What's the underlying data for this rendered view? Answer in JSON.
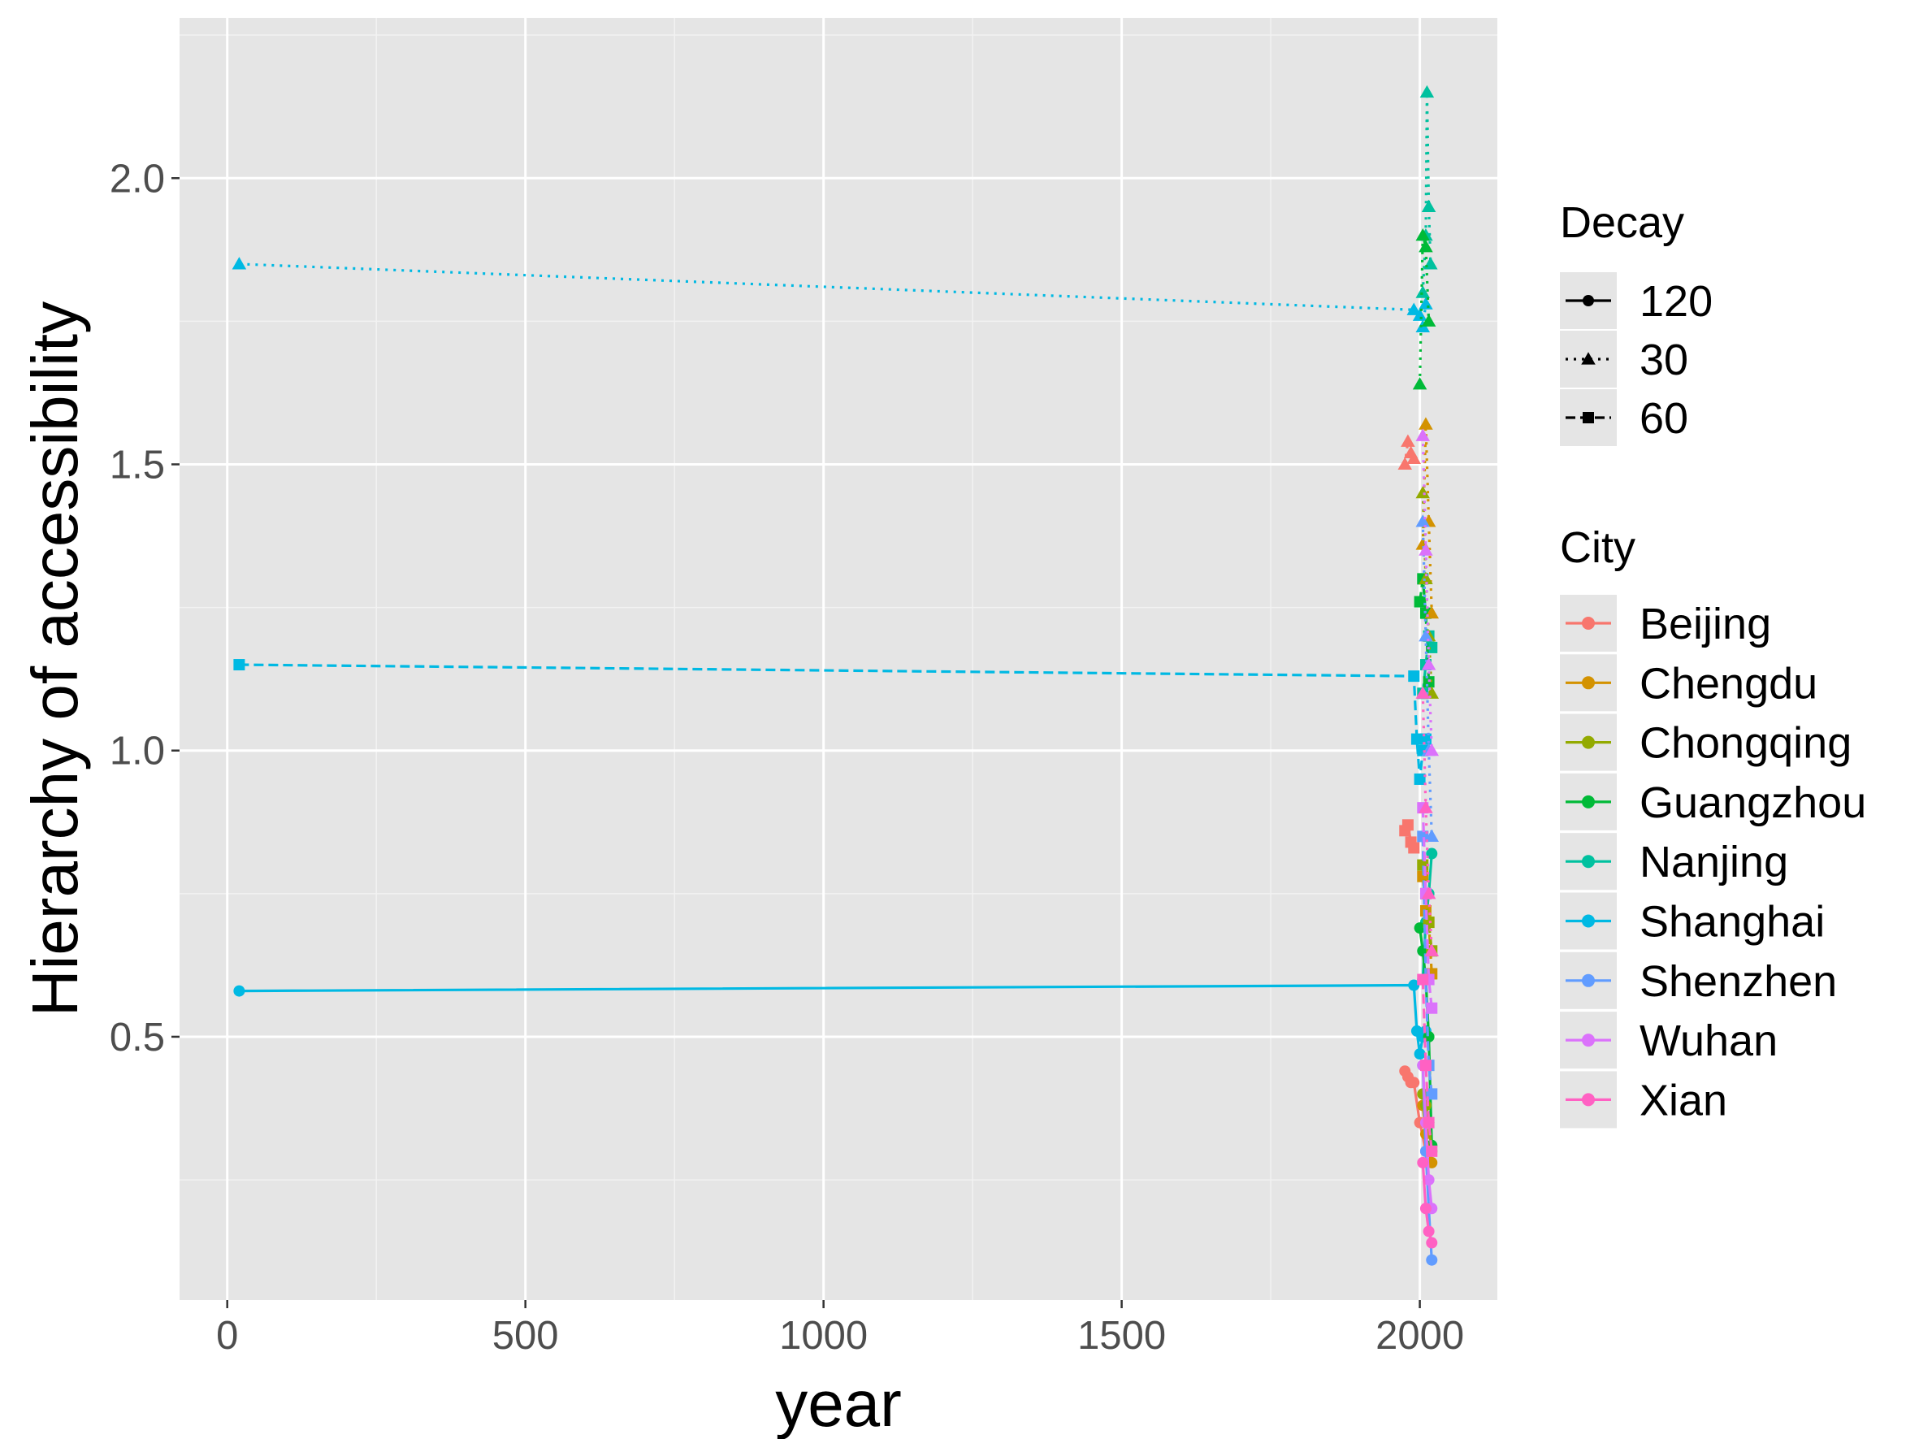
{
  "chart_data": {
    "type": "line",
    "title": "",
    "xlabel": "year",
    "ylabel": "Hierarchy of accessibility",
    "xlim": [
      -80,
      2130
    ],
    "ylim": [
      0.04,
      2.28
    ],
    "x_ticks": [
      0,
      500,
      1000,
      1500,
      2000
    ],
    "x_tick_labels": [
      "0",
      "500",
      "1000",
      "1500",
      "2000"
    ],
    "y_ticks": [
      0.5,
      1.0,
      1.5,
      2.0
    ],
    "y_tick_labels": [
      "0.5",
      "1.0",
      "1.5",
      "2.0"
    ],
    "grid": true,
    "background": "#e5e5e5",
    "legend_position": "right",
    "legend_decay": {
      "title": "Decay",
      "entries": [
        {
          "label": "120",
          "linetype": "solid",
          "shape": "circle"
        },
        {
          "label": "30",
          "linetype": "dotted",
          "shape": "triangle"
        },
        {
          "label": "60",
          "linetype": "dashed",
          "shape": "square"
        }
      ]
    },
    "legend_city": {
      "title": "City",
      "entries": [
        {
          "label": "Beijing",
          "color": "#F8766D"
        },
        {
          "label": "Chengdu",
          "color": "#D39200"
        },
        {
          "label": "Chongqing",
          "color": "#93AA00"
        },
        {
          "label": "Guangzhou",
          "color": "#00BA38"
        },
        {
          "label": "Nanjing",
          "color": "#00C19F"
        },
        {
          "label": "Shanghai",
          "color": "#00B9E3"
        },
        {
          "label": "Shenzhen",
          "color": "#619CFF"
        },
        {
          "label": "Wuhan",
          "color": "#DB72FB"
        },
        {
          "label": "Xian",
          "color": "#FF61C3"
        }
      ]
    },
    "series": [
      {
        "city": "Shanghai",
        "decay": "30",
        "x": [
          20,
          1990,
          2000,
          2005,
          2010
        ],
        "y": [
          1.85,
          1.77,
          1.76,
          1.74,
          1.78
        ]
      },
      {
        "city": "Shanghai",
        "decay": "60",
        "x": [
          20,
          1990,
          1995,
          2000,
          2005,
          2010
        ],
        "y": [
          1.15,
          1.13,
          1.02,
          0.95,
          1.0,
          1.02
        ]
      },
      {
        "city": "Shanghai",
        "decay": "120",
        "x": [
          20,
          1990,
          1995,
          2000,
          2005,
          2010
        ],
        "y": [
          0.58,
          0.59,
          0.51,
          0.47,
          0.5,
          0.51
        ]
      },
      {
        "city": "Beijing",
        "decay": "30",
        "x": [
          1975,
          1980,
          1985,
          1990
        ],
        "y": [
          1.5,
          1.54,
          1.52,
          1.51
        ]
      },
      {
        "city": "Beijing",
        "decay": "60",
        "x": [
          1975,
          1980,
          1985,
          1990
        ],
        "y": [
          0.86,
          0.87,
          0.84,
          0.83
        ]
      },
      {
        "city": "Beijing",
        "decay": "120",
        "x": [
          1975,
          1980,
          1985,
          1990,
          2000,
          2010
        ],
        "y": [
          0.44,
          0.43,
          0.42,
          0.42,
          0.35,
          0.3
        ]
      },
      {
        "city": "Nanjing",
        "decay": "30",
        "x": [
          2005,
          2010,
          2012,
          2015,
          2018
        ],
        "y": [
          1.8,
          1.9,
          2.15,
          1.95,
          1.85
        ]
      },
      {
        "city": "Nanjing",
        "decay": "60",
        "x": [
          2005,
          2010,
          2015,
          2020
        ],
        "y": [
          1.1,
          1.15,
          1.2,
          1.18
        ]
      },
      {
        "city": "Nanjing",
        "decay": "120",
        "x": [
          2005,
          2010,
          2015,
          2020
        ],
        "y": [
          0.6,
          0.7,
          0.75,
          0.82
        ]
      },
      {
        "city": "Guangzhou",
        "decay": "30",
        "x": [
          2000,
          2005,
          2010,
          2015
        ],
        "y": [
          1.64,
          1.9,
          1.88,
          1.75
        ]
      },
      {
        "city": "Guangzhou",
        "decay": "60",
        "x": [
          2000,
          2005,
          2010,
          2015
        ],
        "y": [
          1.26,
          1.3,
          1.24,
          1.12
        ]
      },
      {
        "city": "Guangzhou",
        "decay": "120",
        "x": [
          2000,
          2005,
          2010,
          2015,
          2020
        ],
        "y": [
          0.69,
          0.65,
          0.6,
          0.5,
          0.31
        ]
      },
      {
        "city": "Chengdu",
        "decay": "30",
        "x": [
          2005,
          2010,
          2015,
          2020
        ],
        "y": [
          1.36,
          1.57,
          1.4,
          1.24
        ]
      },
      {
        "city": "Chengdu",
        "decay": "60",
        "x": [
          2005,
          2010,
          2015,
          2020
        ],
        "y": [
          0.78,
          0.72,
          0.7,
          0.61
        ]
      },
      {
        "city": "Chengdu",
        "decay": "120",
        "x": [
          2005,
          2010,
          2015,
          2020
        ],
        "y": [
          0.38,
          0.33,
          0.3,
          0.28
        ]
      },
      {
        "city": "Chongqing",
        "decay": "30",
        "x": [
          2005,
          2010,
          2015,
          2020
        ],
        "y": [
          1.45,
          1.3,
          1.2,
          1.1
        ]
      },
      {
        "city": "Chongqing",
        "decay": "60",
        "x": [
          2005,
          2010,
          2015,
          2020
        ],
        "y": [
          0.8,
          0.75,
          0.7,
          0.65
        ]
      },
      {
        "city": "Chongqing",
        "decay": "120",
        "x": [
          2005,
          2010,
          2015,
          2020
        ],
        "y": [
          0.4,
          0.38,
          0.35,
          0.3
        ]
      },
      {
        "city": "Shenzhen",
        "decay": "30",
        "x": [
          2005,
          2010,
          2015,
          2020
        ],
        "y": [
          1.4,
          1.2,
          1.0,
          0.85
        ]
      },
      {
        "city": "Shenzhen",
        "decay": "60",
        "x": [
          2005,
          2010,
          2015,
          2020
        ],
        "y": [
          0.85,
          0.6,
          0.45,
          0.4
        ]
      },
      {
        "city": "Shenzhen",
        "decay": "120",
        "x": [
          2005,
          2010,
          2015,
          2020
        ],
        "y": [
          0.45,
          0.3,
          0.2,
          0.11
        ]
      },
      {
        "city": "Wuhan",
        "decay": "30",
        "x": [
          2005,
          2010,
          2015,
          2020
        ],
        "y": [
          1.55,
          1.35,
          1.15,
          1.0
        ]
      },
      {
        "city": "Wuhan",
        "decay": "60",
        "x": [
          2005,
          2010,
          2015,
          2020
        ],
        "y": [
          0.9,
          0.75,
          0.6,
          0.55
        ]
      },
      {
        "city": "Wuhan",
        "decay": "120",
        "x": [
          2005,
          2010,
          2015,
          2020
        ],
        "y": [
          0.45,
          0.35,
          0.25,
          0.2
        ]
      },
      {
        "city": "Xian",
        "decay": "30",
        "x": [
          2005,
          2010,
          2015,
          2020
        ],
        "y": [
          1.1,
          0.9,
          0.75,
          0.65
        ]
      },
      {
        "city": "Xian",
        "decay": "60",
        "x": [
          2005,
          2010,
          2015,
          2020
        ],
        "y": [
          0.6,
          0.45,
          0.35,
          0.3
        ]
      },
      {
        "city": "Xian",
        "decay": "120",
        "x": [
          2005,
          2010,
          2015,
          2020
        ],
        "y": [
          0.28,
          0.2,
          0.16,
          0.14
        ]
      }
    ]
  }
}
